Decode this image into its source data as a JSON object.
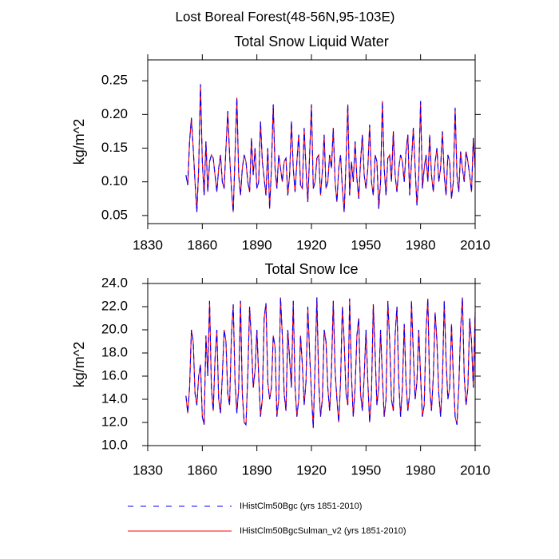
{
  "title": "Lost Boreal Forest(48-56N,95-103E)",
  "chart_data": [
    {
      "type": "line",
      "title": "Total Snow Liquid Water",
      "y_label": "kg/m^2",
      "x": [
        1851,
        1852,
        1853,
        1854,
        1855,
        1856,
        1857,
        1858,
        1859,
        1860,
        1861,
        1862,
        1863,
        1864,
        1865,
        1866,
        1867,
        1868,
        1869,
        1870,
        1871,
        1872,
        1873,
        1874,
        1875,
        1876,
        1877,
        1878,
        1879,
        1880,
        1881,
        1882,
        1883,
        1884,
        1885,
        1886,
        1887,
        1888,
        1889,
        1890,
        1891,
        1892,
        1893,
        1894,
        1895,
        1896,
        1897,
        1898,
        1899,
        1900,
        1901,
        1902,
        1903,
        1904,
        1905,
        1906,
        1907,
        1908,
        1909,
        1910,
        1911,
        1912,
        1913,
        1914,
        1915,
        1916,
        1917,
        1918,
        1919,
        1920,
        1921,
        1922,
        1923,
        1924,
        1925,
        1926,
        1927,
        1928,
        1929,
        1930,
        1931,
        1932,
        1933,
        1934,
        1935,
        1936,
        1937,
        1938,
        1939,
        1940,
        1941,
        1942,
        1943,
        1944,
        1945,
        1946,
        1947,
        1948,
        1949,
        1950,
        1951,
        1952,
        1953,
        1954,
        1955,
        1956,
        1957,
        1958,
        1959,
        1960,
        1961,
        1962,
        1963,
        1964,
        1965,
        1966,
        1967,
        1968,
        1969,
        1970,
        1971,
        1972,
        1973,
        1974,
        1975,
        1976,
        1977,
        1978,
        1979,
        1980,
        1981,
        1982,
        1983,
        1984,
        1985,
        1986,
        1987,
        1988,
        1989,
        1990,
        1991,
        1992,
        1993,
        1994,
        1995,
        1996,
        1997,
        1998,
        1999,
        2000,
        2001,
        2002,
        2003,
        2004,
        2005,
        2006,
        2007,
        2008,
        2009,
        2010
      ],
      "series": [
        {
          "name": "IHistClm50BgcSulman_v2 (yrs 1851-2010)",
          "color": "#ff0000",
          "dash": false,
          "values": [
            0.11,
            0.095,
            0.16,
            0.195,
            0.15,
            0.1,
            0.055,
            0.12,
            0.245,
            0.13,
            0.08,
            0.16,
            0.085,
            0.13,
            0.14,
            0.135,
            0.11,
            0.085,
            0.12,
            0.14,
            0.1,
            0.09,
            0.15,
            0.205,
            0.14,
            0.09,
            0.055,
            0.14,
            0.225,
            0.11,
            0.08,
            0.12,
            0.14,
            0.13,
            0.1,
            0.085,
            0.165,
            0.11,
            0.15,
            0.09,
            0.1,
            0.19,
            0.13,
            0.105,
            0.08,
            0.15,
            0.06,
            0.12,
            0.215,
            0.12,
            0.09,
            0.14,
            0.12,
            0.1,
            0.13,
            0.135,
            0.08,
            0.11,
            0.19,
            0.12,
            0.085,
            0.13,
            0.17,
            0.095,
            0.09,
            0.18,
            0.12,
            0.07,
            0.14,
            0.215,
            0.09,
            0.1,
            0.135,
            0.14,
            0.08,
            0.115,
            0.17,
            0.09,
            0.1,
            0.14,
            0.12,
            0.18,
            0.1,
            0.07,
            0.12,
            0.14,
            0.09,
            0.055,
            0.13,
            0.215,
            0.08,
            0.13,
            0.1,
            0.16,
            0.105,
            0.075,
            0.13,
            0.17,
            0.11,
            0.09,
            0.12,
            0.185,
            0.1,
            0.08,
            0.14,
            0.13,
            0.06,
            0.1,
            0.22,
            0.12,
            0.08,
            0.135,
            0.14,
            0.1,
            0.175,
            0.11,
            0.085,
            0.12,
            0.14,
            0.13,
            0.1,
            0.145,
            0.17,
            0.08,
            0.13,
            0.18,
            0.12,
            0.065,
            0.11,
            0.22,
            0.09,
            0.12,
            0.14,
            0.1,
            0.17,
            0.11,
            0.085,
            0.13,
            0.15,
            0.1,
            0.12,
            0.175,
            0.11,
            0.08,
            0.14,
            0.13,
            0.075,
            0.1,
            0.21,
            0.11,
            0.085,
            0.145,
            0.12,
            0.1,
            0.145,
            0.13,
            0.11,
            0.085,
            0.165,
            0.12
          ]
        },
        {
          "name": "IHistClm50Bgc (yrs 1851-2010)",
          "color": "#0000ff",
          "dash": true,
          "values": [
            0.11,
            0.095,
            0.16,
            0.195,
            0.15,
            0.1,
            0.055,
            0.12,
            0.245,
            0.13,
            0.08,
            0.16,
            0.085,
            0.13,
            0.14,
            0.135,
            0.11,
            0.085,
            0.12,
            0.14,
            0.1,
            0.09,
            0.15,
            0.205,
            0.14,
            0.09,
            0.055,
            0.14,
            0.225,
            0.11,
            0.08,
            0.12,
            0.14,
            0.13,
            0.1,
            0.085,
            0.165,
            0.11,
            0.15,
            0.09,
            0.1,
            0.19,
            0.13,
            0.105,
            0.08,
            0.15,
            0.06,
            0.12,
            0.215,
            0.12,
            0.09,
            0.14,
            0.12,
            0.1,
            0.13,
            0.135,
            0.08,
            0.11,
            0.19,
            0.12,
            0.085,
            0.13,
            0.17,
            0.095,
            0.09,
            0.18,
            0.12,
            0.07,
            0.14,
            0.215,
            0.09,
            0.1,
            0.135,
            0.14,
            0.08,
            0.115,
            0.17,
            0.09,
            0.1,
            0.14,
            0.12,
            0.18,
            0.1,
            0.07,
            0.12,
            0.14,
            0.09,
            0.055,
            0.13,
            0.215,
            0.08,
            0.13,
            0.1,
            0.16,
            0.105,
            0.075,
            0.13,
            0.17,
            0.11,
            0.09,
            0.12,
            0.185,
            0.1,
            0.08,
            0.14,
            0.13,
            0.06,
            0.1,
            0.22,
            0.12,
            0.08,
            0.135,
            0.14,
            0.1,
            0.175,
            0.11,
            0.085,
            0.12,
            0.14,
            0.13,
            0.1,
            0.145,
            0.17,
            0.08,
            0.13,
            0.18,
            0.12,
            0.065,
            0.11,
            0.22,
            0.09,
            0.12,
            0.14,
            0.1,
            0.17,
            0.11,
            0.085,
            0.13,
            0.15,
            0.1,
            0.12,
            0.175,
            0.11,
            0.08,
            0.14,
            0.13,
            0.075,
            0.1,
            0.21,
            0.11,
            0.085,
            0.145,
            0.12,
            0.1,
            0.145,
            0.13,
            0.11,
            0.085,
            0.165,
            0.12
          ]
        }
      ],
      "xlim": [
        1830,
        2010
      ],
      "xticks": [
        1830,
        1860,
        1890,
        1920,
        1950,
        1980,
        2010
      ],
      "ylim": [
        0.038,
        0.281
      ],
      "yticks": [
        {
          "value": 0.05,
          "label": "0.05"
        },
        {
          "value": 0.1,
          "label": "0.10"
        },
        {
          "value": 0.15,
          "label": "0.15"
        },
        {
          "value": 0.2,
          "label": "0.20"
        },
        {
          "value": 0.25,
          "label": "0.25"
        }
      ]
    },
    {
      "type": "line",
      "title": "Total Snow Ice",
      "y_label": "kg/m^2",
      "x": [
        1851,
        1852,
        1853,
        1854,
        1855,
        1856,
        1857,
        1858,
        1859,
        1860,
        1861,
        1862,
        1863,
        1864,
        1865,
        1866,
        1867,
        1868,
        1869,
        1870,
        1871,
        1872,
        1873,
        1874,
        1875,
        1876,
        1877,
        1878,
        1879,
        1880,
        1881,
        1882,
        1883,
        1884,
        1885,
        1886,
        1887,
        1888,
        1889,
        1890,
        1891,
        1892,
        1893,
        1894,
        1895,
        1896,
        1897,
        1898,
        1899,
        1900,
        1901,
        1902,
        1903,
        1904,
        1905,
        1906,
        1907,
        1908,
        1909,
        1910,
        1911,
        1912,
        1913,
        1914,
        1915,
        1916,
        1917,
        1918,
        1919,
        1920,
        1921,
        1922,
        1923,
        1924,
        1925,
        1926,
        1927,
        1928,
        1929,
        1930,
        1931,
        1932,
        1933,
        1934,
        1935,
        1936,
        1937,
        1938,
        1939,
        1940,
        1941,
        1942,
        1943,
        1944,
        1945,
        1946,
        1947,
        1948,
        1949,
        1950,
        1951,
        1952,
        1953,
        1954,
        1955,
        1956,
        1957,
        1958,
        1959,
        1960,
        1961,
        1962,
        1963,
        1964,
        1965,
        1966,
        1967,
        1968,
        1969,
        1970,
        1971,
        1972,
        1973,
        1974,
        1975,
        1976,
        1977,
        1978,
        1979,
        1980,
        1981,
        1982,
        1983,
        1984,
        1985,
        1986,
        1987,
        1988,
        1989,
        1990,
        1991,
        1992,
        1993,
        1994,
        1995,
        1996,
        1997,
        1998,
        1999,
        2000,
        2001,
        2002,
        2003,
        2004,
        2005,
        2006,
        2007,
        2008,
        2009,
        2010
      ],
      "series": [
        {
          "name": "IHistClm50BgcSulman_v2 (yrs 1851-2010)",
          "color": "#ff0000",
          "dash": false,
          "values": [
            14.3,
            12.8,
            15.0,
            20.0,
            19.0,
            14.5,
            13.5,
            16.0,
            17.0,
            12.5,
            11.8,
            19.5,
            16.0,
            22.5,
            15.0,
            13.0,
            17.5,
            20.0,
            14.0,
            12.8,
            16.0,
            20.0,
            19.0,
            14.5,
            13.5,
            19.5,
            22.2,
            15.5,
            12.8,
            15.0,
            22.5,
            14.5,
            12.0,
            11.8,
            16.0,
            22.0,
            19.0,
            15.0,
            16.5,
            20.0,
            16.0,
            12.5,
            14.0,
            21.0,
            22.3,
            15.5,
            14.0,
            15.0,
            19.5,
            18.5,
            12.5,
            14.0,
            22.8,
            19.5,
            14.5,
            13.0,
            20.0,
            17.5,
            15.0,
            22.5,
            15.0,
            12.5,
            14.0,
            19.5,
            17.0,
            13.5,
            15.5,
            22.0,
            18.0,
            14.5,
            11.5,
            17.0,
            22.8,
            15.5,
            12.5,
            14.0,
            20.0,
            19.0,
            15.0,
            13.0,
            16.5,
            22.5,
            16.5,
            14.0,
            12.0,
            15.5,
            22.0,
            19.0,
            14.5,
            13.5,
            22.7,
            16.0,
            12.5,
            15.0,
            19.5,
            21.0,
            14.5,
            13.0,
            16.0,
            20.0,
            15.5,
            12.0,
            14.5,
            22.2,
            18.0,
            13.5,
            15.0,
            20.0,
            16.0,
            12.5,
            14.0,
            22.5,
            19.0,
            14.0,
            13.0,
            19.5,
            22.0,
            15.5,
            12.5,
            15.0,
            20.5,
            15.5,
            13.0,
            14.5,
            22.5,
            18.0,
            14.0,
            15.5,
            20.0,
            16.0,
            12.5,
            13.5,
            20.0,
            22.7,
            15.0,
            13.0,
            16.0,
            21.5,
            19.0,
            14.5,
            12.5,
            15.5,
            22.5,
            17.5,
            14.0,
            15.0,
            20.5,
            16.0,
            12.5,
            11.8,
            15.0,
            20.0,
            22.8,
            16.0,
            13.5,
            15.0,
            21.0,
            19.0,
            15.0,
            21.5
          ]
        },
        {
          "name": "IHistClm50Bgc (yrs 1851-2010)",
          "color": "#0000ff",
          "dash": true,
          "values": [
            14.3,
            12.8,
            15.0,
            20.0,
            19.0,
            14.5,
            13.5,
            16.0,
            17.0,
            12.5,
            11.8,
            19.5,
            16.0,
            22.5,
            15.0,
            13.0,
            17.5,
            20.0,
            14.0,
            12.8,
            16.0,
            20.0,
            19.0,
            14.5,
            13.5,
            19.5,
            22.2,
            15.5,
            12.8,
            15.0,
            22.5,
            14.5,
            12.0,
            11.8,
            16.0,
            22.0,
            19.0,
            15.0,
            16.5,
            20.0,
            16.0,
            12.5,
            14.0,
            21.0,
            22.3,
            15.5,
            14.0,
            15.0,
            19.5,
            18.5,
            12.5,
            14.0,
            22.8,
            19.5,
            14.5,
            13.0,
            20.0,
            17.5,
            15.0,
            22.5,
            15.0,
            12.5,
            14.0,
            19.5,
            17.0,
            13.5,
            15.5,
            22.0,
            18.0,
            14.5,
            11.5,
            17.0,
            22.8,
            15.5,
            12.5,
            14.0,
            20.0,
            19.0,
            15.0,
            13.0,
            16.5,
            22.5,
            16.5,
            14.0,
            12.0,
            15.5,
            22.0,
            19.0,
            14.5,
            13.5,
            22.7,
            16.0,
            12.5,
            15.0,
            19.5,
            21.0,
            14.5,
            13.0,
            16.0,
            20.0,
            15.5,
            12.0,
            14.5,
            22.2,
            18.0,
            13.5,
            15.0,
            20.0,
            16.0,
            12.5,
            14.0,
            22.5,
            19.0,
            14.0,
            13.0,
            19.5,
            22.0,
            15.5,
            12.5,
            15.0,
            20.5,
            15.5,
            13.0,
            14.5,
            22.5,
            18.0,
            14.0,
            15.5,
            20.0,
            16.0,
            12.5,
            13.5,
            20.0,
            22.7,
            15.0,
            13.0,
            16.0,
            21.5,
            19.0,
            14.5,
            12.5,
            15.5,
            22.5,
            17.5,
            14.0,
            15.0,
            20.5,
            16.0,
            12.5,
            11.8,
            15.0,
            20.0,
            22.8,
            16.0,
            13.5,
            15.0,
            21.0,
            19.0,
            15.0,
            21.5
          ]
        }
      ],
      "xlim": [
        1830,
        2010
      ],
      "xticks": [
        1830,
        1860,
        1890,
        1920,
        1950,
        1980,
        2010
      ],
      "ylim": [
        10,
        24
      ],
      "yticks": [
        {
          "value": 10,
          "label": "10.0"
        },
        {
          "value": 12,
          "label": "12.0"
        },
        {
          "value": 14,
          "label": "14.0"
        },
        {
          "value": 16,
          "label": "16.0"
        },
        {
          "value": 18,
          "label": "18.0"
        },
        {
          "value": 20,
          "label": "20.0"
        },
        {
          "value": 22,
          "label": "22.0"
        },
        {
          "value": 24,
          "label": "24.0"
        }
      ]
    }
  ]
}
